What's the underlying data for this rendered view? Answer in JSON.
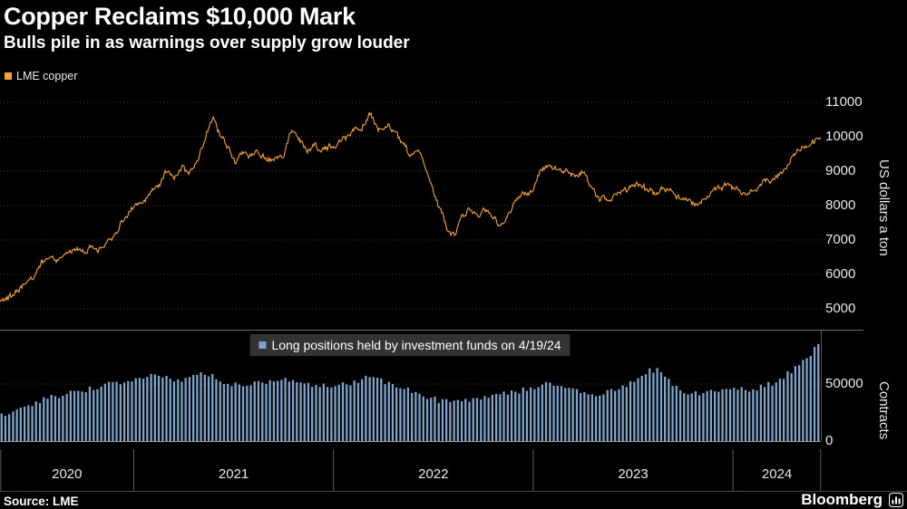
{
  "header": {
    "title": "Copper Reclaims $10,000 Mark",
    "subtitle": "Bulls pile in as warnings over supply grow louder"
  },
  "footer": {
    "source": "Source: LME",
    "brand": "Bloomberg"
  },
  "xaxis": {
    "years": [
      2020,
      2021,
      2022,
      2023,
      2024
    ],
    "tick_years": [
      2021,
      2022,
      2023,
      2024
    ]
  },
  "colors": {
    "background": "#000000",
    "line": "#f5a43b",
    "bars": "#7fa3c9",
    "grid": "#3e3e3e",
    "axis_text": "#e8e8e8"
  },
  "chart_data": [
    {
      "type": "line",
      "name": "LME copper price",
      "legend": "LME copper",
      "ylabel": "US dollars a ton",
      "color": "#f5a43b",
      "x_range": [
        2020.33,
        2024.44
      ],
      "y_ticks": [
        11000,
        10000,
        9000,
        8000,
        7000,
        6000,
        5000
      ],
      "ylim": [
        4500,
        11450
      ],
      "x": [
        2020.33,
        2020.37,
        2020.41,
        2020.45,
        2020.5,
        2020.54,
        2020.58,
        2020.62,
        2020.66,
        2020.71,
        2020.75,
        2020.79,
        2020.83,
        2020.87,
        2020.91,
        2020.95,
        2021.0,
        2021.04,
        2021.08,
        2021.12,
        2021.16,
        2021.2,
        2021.24,
        2021.28,
        2021.33,
        2021.37,
        2021.4,
        2021.43,
        2021.47,
        2021.51,
        2021.55,
        2021.59,
        2021.63,
        2021.67,
        2021.71,
        2021.75,
        2021.79,
        2021.83,
        2021.87,
        2021.91,
        2021.95,
        2022.0,
        2022.05,
        2022.1,
        2022.14,
        2022.18,
        2022.22,
        2022.26,
        2022.3,
        2022.34,
        2022.38,
        2022.42,
        2022.46,
        2022.5,
        2022.54,
        2022.58,
        2022.61,
        2022.64,
        2022.68,
        2022.72,
        2022.76,
        2022.8,
        2022.84,
        2022.88,
        2022.92,
        2022.96,
        2023.0,
        2023.04,
        2023.08,
        2023.12,
        2023.16,
        2023.2,
        2023.24,
        2023.28,
        2023.33,
        2023.37,
        2023.41,
        2023.45,
        2023.49,
        2023.53,
        2023.57,
        2023.61,
        2023.65,
        2023.69,
        2023.73,
        2023.77,
        2023.81,
        2023.85,
        2023.89,
        2023.93,
        2023.97,
        2024.01,
        2024.05,
        2024.09,
        2024.13,
        2024.17,
        2024.21,
        2024.25,
        2024.29,
        2024.33,
        2024.37,
        2024.41,
        2024.44
      ],
      "y": [
        5150,
        5300,
        5500,
        5750,
        5950,
        6350,
        6450,
        6380,
        6550,
        6700,
        6650,
        6800,
        6700,
        6900,
        7150,
        7600,
        7900,
        8000,
        8350,
        8500,
        9000,
        8850,
        9050,
        8950,
        9450,
        10200,
        10550,
        10050,
        9700,
        9300,
        9550,
        9400,
        9500,
        9300,
        9350,
        9500,
        10250,
        9850,
        9600,
        9750,
        9600,
        9780,
        9950,
        10150,
        10250,
        10650,
        10280,
        10350,
        10250,
        9850,
        9500,
        9600,
        9100,
        8400,
        7800,
        7250,
        7050,
        7650,
        7950,
        7700,
        7900,
        7650,
        7450,
        7800,
        8100,
        8350,
        8400,
        9050,
        9200,
        8950,
        9050,
        8850,
        8950,
        8700,
        8250,
        8150,
        8300,
        8450,
        8550,
        8650,
        8450,
        8350,
        8500,
        8400,
        8250,
        8150,
        8050,
        8200,
        8400,
        8550,
        8600,
        8450,
        8350,
        8400,
        8550,
        8650,
        8800,
        9000,
        9350,
        9650,
        9800,
        9900,
        10000
      ],
      "noise": {
        "seed": 42,
        "amplitude": 200
      }
    },
    {
      "type": "bar",
      "name": "Long positions held by investment funds",
      "annotation": "Long positions held by investment funds on 4/19/24",
      "ylabel": "Contracts",
      "color": "#7fa3c9",
      "x_range": [
        2020.33,
        2024.44
      ],
      "y_ticks": [
        50000,
        0
      ],
      "ylim": [
        0,
        90000
      ],
      "bar_interval_years": 0.0192,
      "x": [
        2020.33,
        2020.4,
        2020.48,
        2020.56,
        2020.64,
        2020.72,
        2020.8,
        2020.88,
        2020.96,
        2021.04,
        2021.1,
        2021.16,
        2021.22,
        2021.28,
        2021.34,
        2021.4,
        2021.46,
        2021.52,
        2021.58,
        2021.64,
        2021.7,
        2021.76,
        2021.82,
        2021.88,
        2021.94,
        2022.0,
        2022.06,
        2022.12,
        2022.18,
        2022.24,
        2022.3,
        2022.36,
        2022.42,
        2022.48,
        2022.54,
        2022.6,
        2022.66,
        2022.72,
        2022.78,
        2022.84,
        2022.9,
        2022.96,
        2023.02,
        2023.08,
        2023.14,
        2023.2,
        2023.26,
        2023.32,
        2023.38,
        2023.44,
        2023.5,
        2023.56,
        2023.62,
        2023.66,
        2023.72,
        2023.78,
        2023.84,
        2023.9,
        2023.96,
        2024.02,
        2024.08,
        2024.14,
        2024.2,
        2024.26,
        2024.32,
        2024.36,
        2024.4,
        2024.44
      ],
      "y": [
        22000,
        27000,
        32000,
        37000,
        41000,
        44000,
        46000,
        50000,
        52000,
        54000,
        57000,
        55000,
        53000,
        56000,
        60000,
        56000,
        52000,
        48000,
        50000,
        52000,
        53000,
        54000,
        52000,
        50000,
        48000,
        47000,
        50000,
        53000,
        56000,
        53000,
        50000,
        46000,
        42000,
        38000,
        35000,
        33000,
        35000,
        37000,
        39000,
        41000,
        43000,
        45000,
        48000,
        52000,
        49000,
        46000,
        43000,
        41000,
        43000,
        47000,
        53000,
        60000,
        63000,
        57000,
        47000,
        42000,
        41000,
        44000,
        47000,
        46000,
        45000,
        47000,
        51000,
        57000,
        65000,
        71000,
        79000,
        87000
      ],
      "noise": {
        "seed": 7,
        "amplitude": 2600
      }
    }
  ]
}
